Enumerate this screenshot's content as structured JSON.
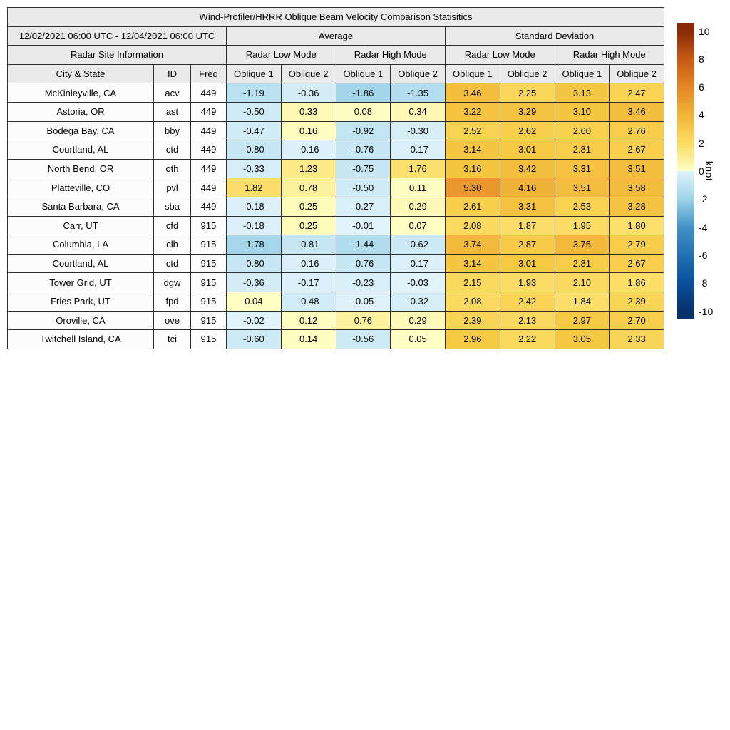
{
  "title": "Wind-Profiler/HRRR Oblique Beam Velocity Comparison Statisitics",
  "header": {
    "date_range": "12/02/2021 06:00 UTC - 12/04/2021 06:00 UTC",
    "group_average": "Average",
    "group_std_dev": "Standard Deviation",
    "site_info": "Radar Site Information",
    "mode_low": "Radar Low Mode",
    "mode_high": "Radar High Mode",
    "col_city_state": "City & State",
    "col_id": "ID",
    "col_freq": "Freq",
    "col_oblique_1": "Oblique 1",
    "col_oblique_2": "Oblique 2"
  },
  "chart_data": {
    "type": "heatmap",
    "title": "Wind-Profiler/HRRR Oblique Beam Velocity Comparison Statisitics",
    "value_columns": [
      {
        "group": "Average",
        "mode": "Radar Low Mode",
        "beam": "Oblique 1"
      },
      {
        "group": "Average",
        "mode": "Radar Low Mode",
        "beam": "Oblique 2"
      },
      {
        "group": "Average",
        "mode": "Radar High Mode",
        "beam": "Oblique 1"
      },
      {
        "group": "Average",
        "mode": "Radar High Mode",
        "beam": "Oblique 2"
      },
      {
        "group": "Standard Deviation",
        "mode": "Radar Low Mode",
        "beam": "Oblique 1"
      },
      {
        "group": "Standard Deviation",
        "mode": "Radar Low Mode",
        "beam": "Oblique 2"
      },
      {
        "group": "Standard Deviation",
        "mode": "Radar High Mode",
        "beam": "Oblique 1"
      },
      {
        "group": "Standard Deviation",
        "mode": "Radar High Mode",
        "beam": "Oblique 2"
      }
    ],
    "rows": [
      {
        "city": "McKinleyville, CA",
        "id": "acv",
        "freq": "449",
        "values": [
          -1.19,
          -0.36,
          -1.86,
          -1.35,
          3.46,
          2.25,
          3.13,
          2.47
        ]
      },
      {
        "city": "Astoria, OR",
        "id": "ast",
        "freq": "449",
        "values": [
          -0.5,
          0.33,
          0.08,
          0.34,
          3.22,
          3.29,
          3.1,
          3.46
        ]
      },
      {
        "city": "Bodega Bay, CA",
        "id": "bby",
        "freq": "449",
        "values": [
          -0.47,
          0.16,
          -0.92,
          -0.3,
          2.52,
          2.62,
          2.6,
          2.76
        ]
      },
      {
        "city": "Courtland, AL",
        "id": "ctd",
        "freq": "449",
        "values": [
          -0.8,
          -0.16,
          -0.76,
          -0.17,
          3.14,
          3.01,
          2.81,
          2.67
        ]
      },
      {
        "city": "North Bend, OR",
        "id": "oth",
        "freq": "449",
        "values": [
          -0.33,
          1.23,
          -0.75,
          1.76,
          3.16,
          3.42,
          3.31,
          3.51
        ]
      },
      {
        "city": "Platteville, CO",
        "id": "pvl",
        "freq": "449",
        "values": [
          1.82,
          0.78,
          -0.5,
          0.11,
          5.3,
          4.16,
          3.51,
          3.58
        ]
      },
      {
        "city": "Santa Barbara, CA",
        "id": "sba",
        "freq": "449",
        "values": [
          -0.18,
          0.25,
          -0.27,
          0.29,
          2.61,
          3.31,
          2.53,
          3.28
        ]
      },
      {
        "city": "Carr, UT",
        "id": "cfd",
        "freq": "915",
        "values": [
          -0.18,
          0.25,
          -0.01,
          0.07,
          2.08,
          1.87,
          1.95,
          1.8
        ]
      },
      {
        "city": "Columbia, LA",
        "id": "clb",
        "freq": "915",
        "values": [
          -1.78,
          -0.81,
          -1.44,
          -0.62,
          3.74,
          2.87,
          3.75,
          2.79
        ]
      },
      {
        "city": "Courtland, AL",
        "id": "ctd",
        "freq": "915",
        "values": [
          -0.8,
          -0.16,
          -0.76,
          -0.17,
          3.14,
          3.01,
          2.81,
          2.67
        ]
      },
      {
        "city": "Tower Grid, UT",
        "id": "dgw",
        "freq": "915",
        "values": [
          -0.36,
          -0.17,
          -0.23,
          -0.03,
          2.15,
          1.93,
          2.1,
          1.86
        ]
      },
      {
        "city": "Fries Park, UT",
        "id": "fpd",
        "freq": "915",
        "values": [
          0.04,
          -0.48,
          -0.05,
          -0.32,
          2.08,
          2.42,
          1.84,
          2.39
        ]
      },
      {
        "city": "Oroville, CA",
        "id": "ove",
        "freq": "915",
        "values": [
          -0.02,
          0.12,
          0.76,
          0.29,
          2.39,
          2.13,
          2.97,
          2.7
        ]
      },
      {
        "city": "Twitchell Island, CA",
        "id": "tci",
        "freq": "915",
        "values": [
          -0.6,
          0.14,
          -0.56,
          0.05,
          2.96,
          2.22,
          3.05,
          2.33
        ]
      }
    ],
    "colorbar": {
      "label": "knot",
      "min": -10,
      "max": 10,
      "ticks": [
        10,
        8,
        6,
        4,
        2,
        0,
        -2,
        -4,
        -6,
        -8,
        -10
      ],
      "colormap_stops": [
        {
          "v": -10,
          "color": "#08306b"
        },
        {
          "v": -8,
          "color": "#08519c"
        },
        {
          "v": -6,
          "color": "#2171b5"
        },
        {
          "v": -4,
          "color": "#4292c6"
        },
        {
          "v": -2,
          "color": "#9ed4e9"
        },
        {
          "v": -1e-06,
          "color": "#e1f3fa"
        },
        {
          "v": 0,
          "color": "#ffffc6"
        },
        {
          "v": 1,
          "color": "#feee94"
        },
        {
          "v": 2,
          "color": "#fbdc62"
        },
        {
          "v": 3,
          "color": "#f6c942"
        },
        {
          "v": 4,
          "color": "#f0b438"
        },
        {
          "v": 5,
          "color": "#eca02f"
        },
        {
          "v": 6,
          "color": "#e58626"
        },
        {
          "v": 8,
          "color": "#c65a15"
        },
        {
          "v": 10,
          "color": "#892a05"
        }
      ]
    }
  },
  "styles": {
    "header_bg": "#eaeaea",
    "label_cell_bg": "#fcfcfc",
    "border_color": "#2e2e2e",
    "background": "#ffffff"
  }
}
